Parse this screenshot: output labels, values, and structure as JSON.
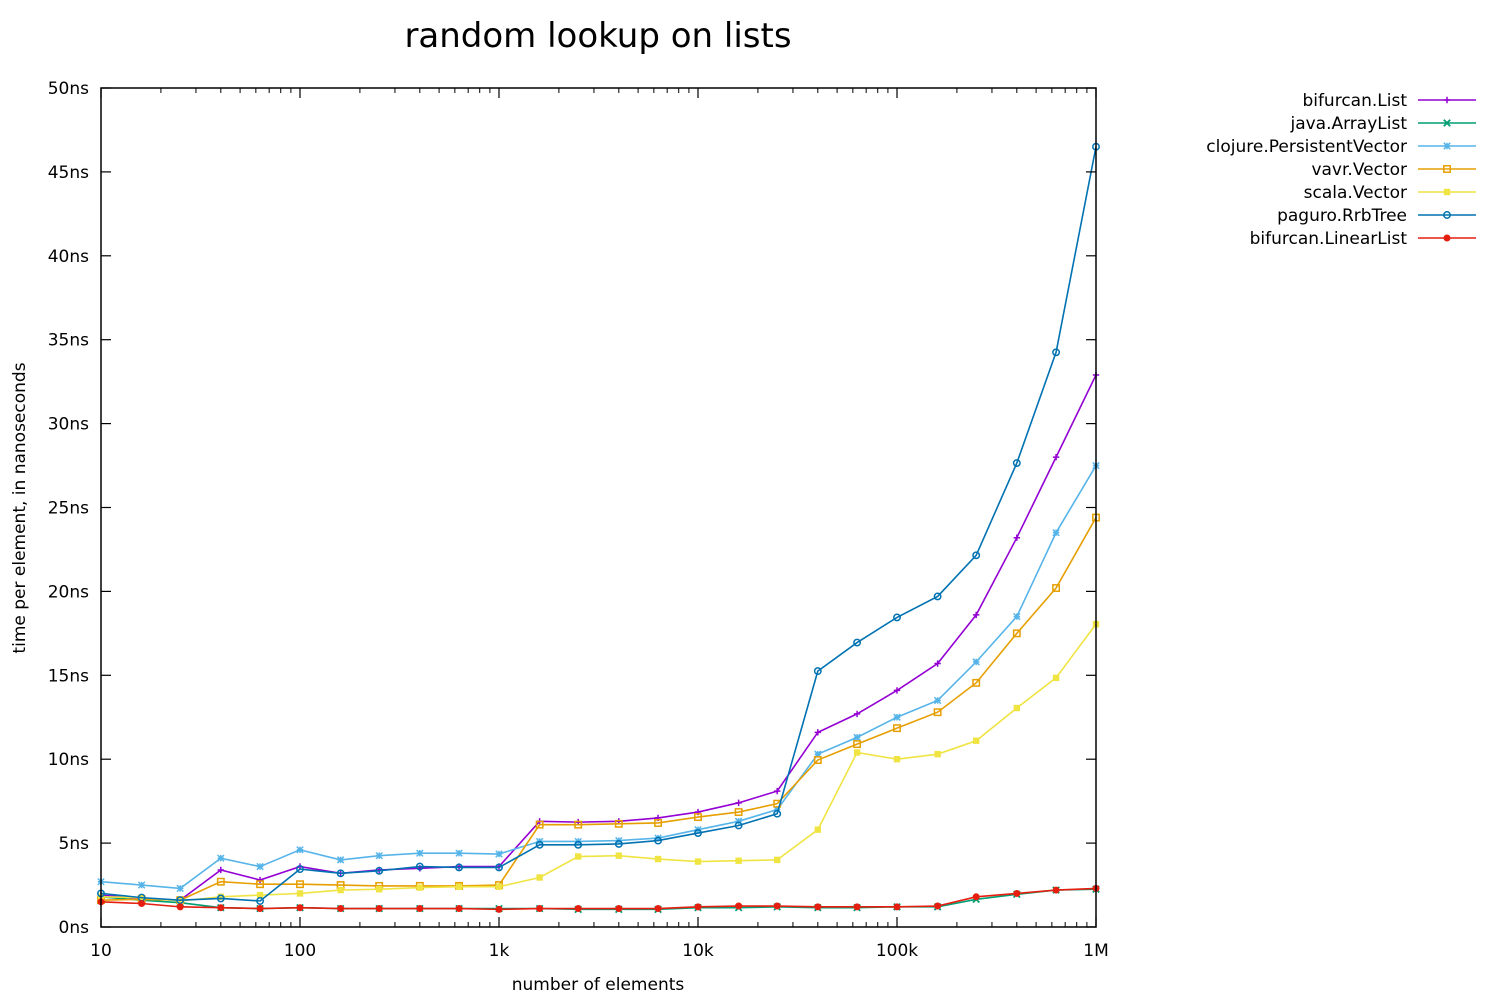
{
  "chart_data": {
    "type": "line",
    "title": "random lookup on lists",
    "xlabel": "number of elements",
    "ylabel": "time per element, in nanoseconds",
    "x_scale": "log",
    "xlim": [
      10,
      1000000
    ],
    "ylim": [
      0,
      50
    ],
    "x_ticks": [
      {
        "value": 10,
        "label": "10"
      },
      {
        "value": 100,
        "label": "100"
      },
      {
        "value": 1000,
        "label": "1k"
      },
      {
        "value": 10000,
        "label": "10k"
      },
      {
        "value": 100000,
        "label": "100k"
      },
      {
        "value": 1000000,
        "label": "1M"
      }
    ],
    "y_ticks": [
      {
        "value": 0,
        "label": "0ns"
      },
      {
        "value": 5,
        "label": "5ns"
      },
      {
        "value": 10,
        "label": "10ns"
      },
      {
        "value": 15,
        "label": "15ns"
      },
      {
        "value": 20,
        "label": "20ns"
      },
      {
        "value": 25,
        "label": "25ns"
      },
      {
        "value": 30,
        "label": "30ns"
      },
      {
        "value": 35,
        "label": "35ns"
      },
      {
        "value": 40,
        "label": "40ns"
      },
      {
        "value": 45,
        "label": "45ns"
      },
      {
        "value": 50,
        "label": "50ns"
      }
    ],
    "grid": false,
    "legend_position": "outside-top-right",
    "x": [
      10,
      16,
      25,
      40,
      63,
      100,
      160,
      250,
      400,
      630,
      1000,
      1600,
      2500,
      4000,
      6300,
      10000,
      16000,
      25000,
      40000,
      63000,
      100000,
      160000,
      250000,
      400000,
      630000,
      1000000
    ],
    "series": [
      {
        "name": "bifurcan.List",
        "color": "#9400d3",
        "marker": "plus",
        "values": [
          1.9,
          1.7,
          1.6,
          3.4,
          2.8,
          3.6,
          3.2,
          3.4,
          3.5,
          3.6,
          3.6,
          6.3,
          6.25,
          6.3,
          6.5,
          6.85,
          7.4,
          8.1,
          11.6,
          12.7,
          14.1,
          15.7,
          18.6,
          23.2,
          28.0,
          32.9
        ]
      },
      {
        "name": "java.ArrayList",
        "color": "#009e73",
        "marker": "cross",
        "values": [
          1.8,
          1.6,
          1.45,
          1.15,
          1.1,
          1.15,
          1.1,
          1.1,
          1.1,
          1.1,
          1.1,
          1.1,
          1.05,
          1.05,
          1.05,
          1.15,
          1.15,
          1.2,
          1.15,
          1.15,
          1.2,
          1.2,
          1.65,
          1.95,
          2.2,
          2.25
        ]
      },
      {
        "name": "clojure.PersistentVector",
        "color": "#56b4e9",
        "marker": "star",
        "values": [
          2.7,
          2.5,
          2.3,
          4.1,
          3.6,
          4.6,
          4.0,
          4.25,
          4.4,
          4.4,
          4.35,
          5.1,
          5.1,
          5.15,
          5.3,
          5.8,
          6.3,
          7.0,
          10.3,
          11.3,
          12.5,
          13.5,
          15.8,
          18.5,
          23.5,
          27.5
        ]
      },
      {
        "name": "vavr.Vector",
        "color": "#e69f00",
        "marker": "open-square",
        "values": [
          1.6,
          1.65,
          1.6,
          2.7,
          2.55,
          2.55,
          2.5,
          2.45,
          2.45,
          2.45,
          2.5,
          6.1,
          6.1,
          6.15,
          6.2,
          6.55,
          6.85,
          7.35,
          9.95,
          10.9,
          11.85,
          12.8,
          14.55,
          17.5,
          20.2,
          24.4
        ]
      },
      {
        "name": "scala.Vector",
        "color": "#f0e442",
        "marker": "filled-square",
        "values": [
          1.8,
          1.75,
          1.55,
          1.8,
          1.9,
          2.0,
          2.2,
          2.25,
          2.35,
          2.4,
          2.4,
          2.95,
          4.2,
          4.25,
          4.05,
          3.9,
          3.95,
          4.0,
          5.8,
          10.4,
          10.0,
          10.3,
          11.1,
          13.05,
          14.85,
          18.05
        ]
      },
      {
        "name": "paguro.RrbTree",
        "color": "#0072b2",
        "marker": "open-circle",
        "values": [
          2.0,
          1.75,
          1.6,
          1.7,
          1.55,
          3.45,
          3.2,
          3.35,
          3.6,
          3.55,
          3.55,
          4.9,
          4.9,
          4.95,
          5.15,
          5.6,
          6.05,
          6.75,
          15.25,
          16.95,
          18.45,
          19.7,
          22.15,
          27.65,
          34.25,
          46.5
        ]
      },
      {
        "name": "bifurcan.LinearList",
        "color": "#e51e10",
        "marker": "filled-circle",
        "values": [
          1.5,
          1.4,
          1.2,
          1.15,
          1.1,
          1.15,
          1.1,
          1.1,
          1.1,
          1.1,
          1.05,
          1.1,
          1.1,
          1.1,
          1.1,
          1.2,
          1.25,
          1.25,
          1.2,
          1.2,
          1.2,
          1.25,
          1.8,
          2.0,
          2.2,
          2.3
        ]
      }
    ]
  }
}
